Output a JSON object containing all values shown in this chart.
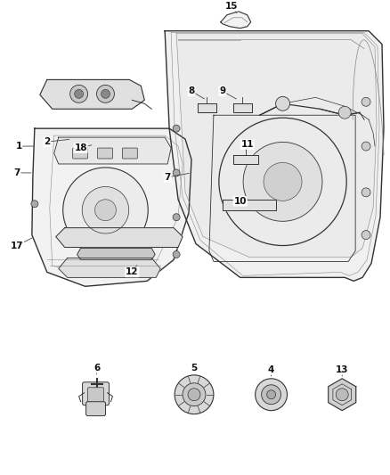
{
  "bg_color": "#ffffff",
  "fig_width": 4.38,
  "fig_height": 5.33,
  "dpi": 100,
  "dark": "#333333",
  "gray": "#888888",
  "light_gray": "#cccccc",
  "fill_light": "#f2f2f2",
  "fill_med": "#e0e0e0",
  "fill_dark": "#c8c8c8"
}
